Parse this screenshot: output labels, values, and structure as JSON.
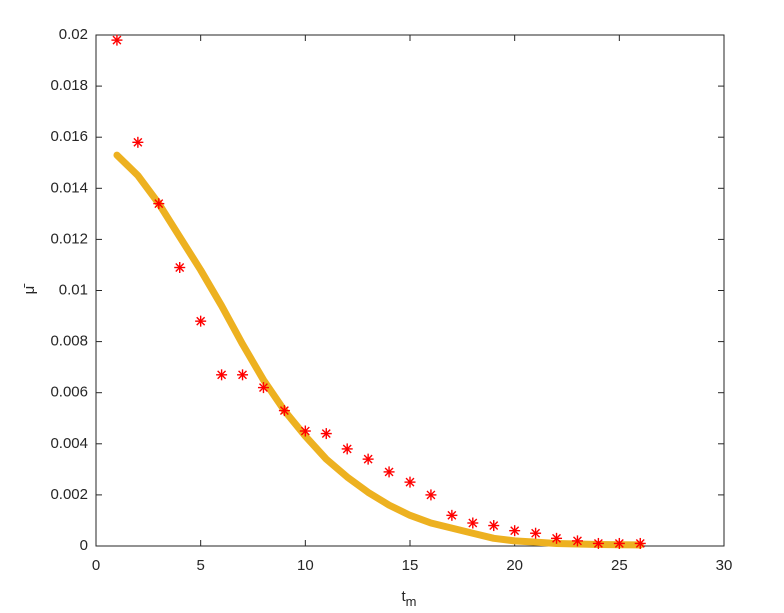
{
  "chart_data": {
    "type": "scatter",
    "xlabel": "t",
    "xlabel_sub": "m",
    "ylabel": "μ̄",
    "xlim": [
      0,
      30
    ],
    "xticks": [
      0,
      5,
      10,
      15,
      20,
      25,
      30
    ],
    "ylim": [
      0,
      0.02
    ],
    "yticks": [
      0,
      0.002,
      0.004,
      0.006,
      0.008,
      0.01,
      0.012,
      0.014,
      0.016,
      0.018,
      0.02
    ],
    "grid": false,
    "series": [
      {
        "type": "line",
        "color": "#edb120",
        "x": [
          1,
          2,
          3,
          4,
          5,
          6,
          7,
          8,
          9,
          10,
          11,
          12,
          13,
          14,
          15,
          16,
          17,
          18,
          19,
          20,
          21,
          22,
          23,
          24,
          25,
          26
        ],
        "values": [
          0.0153,
          0.0145,
          0.0134,
          0.0121,
          0.0108,
          0.0094,
          0.0079,
          0.0065,
          0.0053,
          0.0043,
          0.0034,
          0.0027,
          0.0021,
          0.0016,
          0.0012,
          0.0009,
          0.0007,
          0.0005,
          0.0003,
          0.0002,
          0.00015,
          0.0001,
          8e-05,
          6e-05,
          5e-05,
          4e-05
        ]
      },
      {
        "type": "scatter",
        "color": "#ff0000",
        "x": [
          1,
          2,
          3,
          4,
          5,
          6,
          7,
          8,
          9,
          10,
          11,
          12,
          13,
          14,
          15,
          16,
          17,
          18,
          19,
          20,
          21,
          22,
          23,
          24,
          25,
          26
        ],
        "values": [
          0.0198,
          0.0158,
          0.0134,
          0.0109,
          0.0088,
          0.0067,
          0.0067,
          0.0062,
          0.0053,
          0.0045,
          0.0044,
          0.0038,
          0.0034,
          0.0029,
          0.0025,
          0.002,
          0.0012,
          0.0009,
          0.0008,
          0.0006,
          0.0005,
          0.0003,
          0.0002,
          0.0001,
          0.0001,
          0.0001
        ]
      }
    ]
  }
}
